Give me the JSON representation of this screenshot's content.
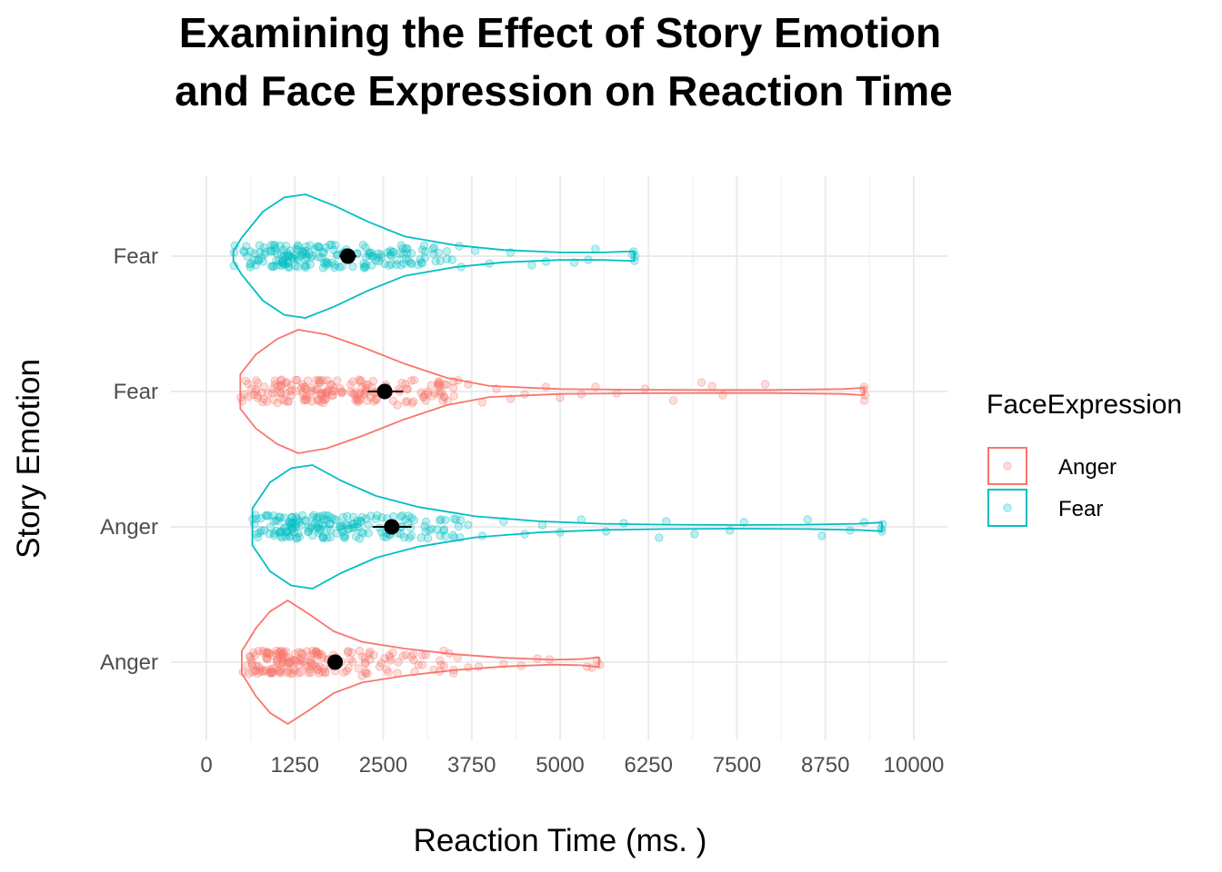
{
  "chart_data": {
    "type": "violin",
    "title_lines": [
      "Examining the Effect of Story Emotion",
      "and Face Expression on Reaction Time"
    ],
    "xlabel": "Reaction Time (ms. )",
    "ylabel": "Story Emotion",
    "xlim": [
      0,
      10000
    ],
    "x_ticks": [
      0,
      1250,
      2500,
      3750,
      5000,
      6250,
      7500,
      8750,
      10000
    ],
    "x_tick_labels": [
      "0",
      "1250",
      "2500",
      "3750",
      "5000",
      "6250",
      "7500",
      "8750",
      "10000"
    ],
    "y_categories": [
      "Anger",
      "Anger",
      "Fear",
      "Fear"
    ],
    "grid": true,
    "legend": {
      "title": "FaceExpression",
      "position": "right",
      "entries": [
        {
          "label": "Anger",
          "color": "#F8766D"
        },
        {
          "label": "Fear",
          "color": "#00BFC4"
        }
      ]
    },
    "series": [
      {
        "story": "Anger",
        "face": "Anger",
        "color": "#F8766D",
        "min": 500,
        "max": 5550,
        "mean": 1820,
        "ci": [
          1720,
          1920
        ],
        "density": [
          [
            500,
            0.18
          ],
          [
            700,
            0.55
          ],
          [
            900,
            0.82
          ],
          [
            1150,
            1.0
          ],
          [
            1450,
            0.78
          ],
          [
            1800,
            0.5
          ],
          [
            2200,
            0.33
          ],
          [
            2800,
            0.22
          ],
          [
            3500,
            0.13
          ],
          [
            4200,
            0.07
          ],
          [
            4900,
            0.04
          ],
          [
            5300,
            0.05
          ],
          [
            5550,
            0.08
          ]
        ],
        "points": [
          [
            5450,
            0.06
          ],
          [
            5520,
            -0.02
          ],
          [
            5380,
            0.05
          ],
          [
            5560,
            0.03
          ],
          [
            4850,
            -0.03
          ],
          [
            4680,
            -0.04
          ],
          [
            4200,
            0.02
          ],
          [
            4450,
            0.04
          ],
          [
            3850,
            0.05
          ],
          [
            3700,
            0.06
          ],
          [
            3550,
            -0.05
          ],
          [
            3300,
            0.1
          ],
          [
            3100,
            -0.08
          ],
          [
            3050,
            0.03
          ],
          [
            2900,
            -0.06
          ],
          [
            2700,
            0.12
          ],
          [
            2600,
            -0.02
          ],
          [
            2450,
            0.05
          ],
          [
            2300,
            -0.09
          ],
          [
            2200,
            0.15
          ]
        ]
      },
      {
        "story": "Anger",
        "face": "Fear",
        "color": "#00BFC4",
        "min": 650,
        "max": 9550,
        "mean": 2620,
        "ci": [
          2350,
          2900
        ],
        "density": [
          [
            650,
            0.3
          ],
          [
            900,
            0.72
          ],
          [
            1200,
            0.95
          ],
          [
            1500,
            1.0
          ],
          [
            1900,
            0.75
          ],
          [
            2400,
            0.5
          ],
          [
            3000,
            0.32
          ],
          [
            3800,
            0.17
          ],
          [
            4700,
            0.09
          ],
          [
            5600,
            0.05
          ],
          [
            6500,
            0.035
          ],
          [
            7500,
            0.03
          ],
          [
            8500,
            0.035
          ],
          [
            9200,
            0.05
          ],
          [
            9550,
            0.07
          ]
        ],
        "points": [
          [
            9550,
            0.05
          ],
          [
            9560,
            -0.03
          ],
          [
            9540,
            0.02
          ],
          [
            9300,
            -0.05
          ],
          [
            9100,
            0.04
          ],
          [
            8700,
            0.1
          ],
          [
            8500,
            -0.08
          ],
          [
            7600,
            -0.05
          ],
          [
            7400,
            0.04
          ],
          [
            6900,
            0.08
          ],
          [
            6500,
            -0.06
          ],
          [
            6400,
            0.12
          ],
          [
            5900,
            -0.04
          ],
          [
            5650,
            0.05
          ],
          [
            5300,
            -0.08
          ],
          [
            5000,
            0.06
          ],
          [
            4750,
            -0.02
          ],
          [
            4500,
            0.08
          ],
          [
            4200,
            -0.06
          ],
          [
            3900,
            0.1
          ],
          [
            3700,
            -0.02
          ],
          [
            3500,
            0.12
          ],
          [
            3300,
            -0.07
          ],
          [
            3100,
            0.05
          ],
          [
            2900,
            -0.1
          ],
          [
            2750,
            0.08
          ]
        ]
      },
      {
        "story": "Fear",
        "face": "Anger",
        "color": "#F8766D",
        "min": 480,
        "max": 9300,
        "mean": 2520,
        "ci": [
          2280,
          2780
        ],
        "density": [
          [
            480,
            0.28
          ],
          [
            700,
            0.6
          ],
          [
            1000,
            0.85
          ],
          [
            1300,
            1.0
          ],
          [
            1700,
            0.92
          ],
          [
            2200,
            0.72
          ],
          [
            2800,
            0.45
          ],
          [
            3400,
            0.22
          ],
          [
            4000,
            0.09
          ],
          [
            5000,
            0.04
          ],
          [
            6000,
            0.03
          ],
          [
            7000,
            0.025
          ],
          [
            8000,
            0.025
          ],
          [
            9000,
            0.04
          ],
          [
            9300,
            0.06
          ]
        ],
        "points": [
          [
            9300,
            0.1
          ],
          [
            9310,
            0.04
          ],
          [
            9290,
            -0.02
          ],
          [
            9300,
            -0.05
          ],
          [
            7900,
            -0.08
          ],
          [
            7300,
            0.04
          ],
          [
            7150,
            -0.06
          ],
          [
            7000,
            -0.1
          ],
          [
            6600,
            0.1
          ],
          [
            6200,
            -0.03
          ],
          [
            5800,
            0.02
          ],
          [
            5500,
            -0.05
          ],
          [
            5300,
            0.03
          ],
          [
            5000,
            0.07
          ],
          [
            4800,
            -0.05
          ],
          [
            4500,
            0.03
          ],
          [
            4300,
            0.08
          ],
          [
            4100,
            -0.03
          ],
          [
            3900,
            0.12
          ],
          [
            3700,
            -0.08
          ],
          [
            3500,
            0.05
          ],
          [
            3300,
            -0.06
          ],
          [
            3100,
            0.1
          ],
          [
            2900,
            -0.12
          ],
          [
            2700,
            0.15
          ],
          [
            2550,
            -0.05
          ]
        ]
      },
      {
        "story": "Fear",
        "face": "Fear",
        "color": "#00BFC4",
        "min": 380,
        "max": 6050,
        "mean": 2000,
        "ci": [
          1880,
          2120
        ],
        "density": [
          [
            380,
            0.08
          ],
          [
            500,
            0.3
          ],
          [
            800,
            0.72
          ],
          [
            1100,
            0.95
          ],
          [
            1400,
            1.0
          ],
          [
            1800,
            0.82
          ],
          [
            2300,
            0.55
          ],
          [
            2800,
            0.32
          ],
          [
            3500,
            0.18
          ],
          [
            4200,
            0.1
          ],
          [
            5000,
            0.06
          ],
          [
            5600,
            0.06
          ],
          [
            6050,
            0.08
          ]
        ],
        "points": [
          [
            6050,
            0.05
          ],
          [
            6060,
            0.0
          ],
          [
            6040,
            -0.05
          ],
          [
            6020,
            -0.02
          ],
          [
            5500,
            -0.08
          ],
          [
            5400,
            0.04
          ],
          [
            5200,
            0.07
          ],
          [
            4800,
            0.06
          ],
          [
            4600,
            0.1
          ],
          [
            4300,
            -0.04
          ],
          [
            4000,
            0.08
          ],
          [
            3800,
            -0.06
          ],
          [
            3600,
            0.12
          ],
          [
            3400,
            0.03
          ],
          [
            3200,
            -0.08
          ],
          [
            3050,
            0.08
          ],
          [
            2900,
            -0.03
          ],
          [
            2750,
            0.1
          ],
          [
            2600,
            -0.06
          ],
          [
            2400,
            0.05
          ],
          [
            2250,
            0.12
          ]
        ]
      }
    ]
  }
}
